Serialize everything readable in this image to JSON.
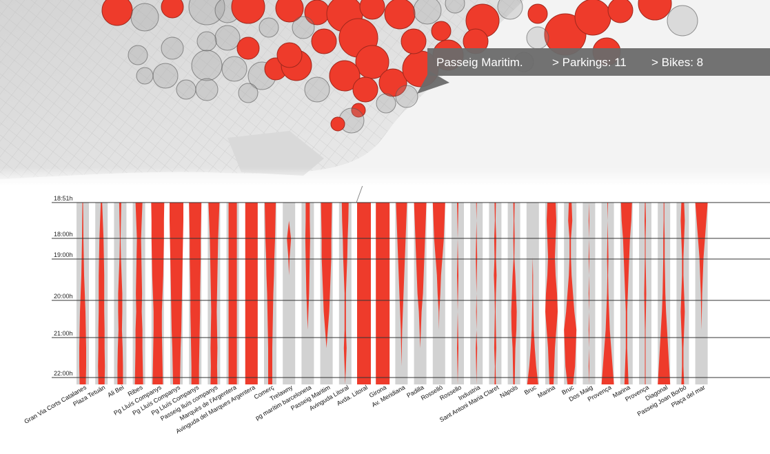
{
  "tooltip": {
    "station": "Passeig Maritim.",
    "parkings": "> Parkings: 11",
    "bikes": "> Bikes: 8"
  },
  "colors": {
    "bike_red": "#ee3b2b",
    "track_gray": "#d2d2d2",
    "tooltip_bg": "#6a6a6a",
    "map_land": "#e4e4e4",
    "map_sea": "#f4f4f4"
  },
  "chart_data": {
    "type": "timeline-columns",
    "title": "",
    "time_ticks": [
      "18:51h",
      "18:00h",
      "19:00h",
      "20:00h",
      "21:00h",
      "22:00h"
    ],
    "stations": [
      {
        "name": "Gran Via Corts Catalanes",
        "profile": [
          0.05,
          0.08,
          0.1,
          0.15,
          0.2,
          0.3,
          0.4,
          0.45,
          0.5,
          0.5,
          0.45
        ]
      },
      {
        "name": "Plaza Tetuán",
        "profile": [
          0.1,
          0.2,
          0.3,
          0.35,
          0.4,
          0.4,
          0.4,
          0.45,
          0.45,
          0.5,
          0.45
        ]
      },
      {
        "name": "Ali Bei",
        "profile": [
          0.15,
          0.1,
          0.05,
          0.1,
          0.2,
          0.3,
          0.3,
          0.25,
          0.35,
          0.4,
          0.4
        ]
      },
      {
        "name": "Ribes",
        "profile": [
          0.5,
          0.4,
          0.3,
          0.35,
          0.4,
          0.45,
          0.4,
          0.5,
          0.5,
          0.55,
          0.6
        ]
      },
      {
        "name": "Pg Lluís Companys",
        "profile": [
          0.95,
          0.9,
          0.9,
          0.85,
          0.8,
          0.7,
          0.6,
          0.6,
          0.65,
          0.7,
          0.75
        ]
      },
      {
        "name": "Pg Lluís Companys",
        "profile": [
          1.0,
          1.0,
          0.95,
          0.9,
          0.85,
          0.8,
          0.75,
          0.7,
          0.6,
          0.55,
          0.5
        ]
      },
      {
        "name": "Pg Lluís Companys",
        "profile": [
          0.9,
          0.85,
          0.8,
          0.8,
          0.75,
          0.7,
          0.7,
          0.65,
          0.6,
          0.55,
          0.55
        ]
      },
      {
        "name": "Passeig lluís companys",
        "profile": [
          0.8,
          0.7,
          0.6,
          0.55,
          0.5,
          0.45,
          0.4,
          0.45,
          0.5,
          0.45,
          0.5
        ]
      },
      {
        "name": "Marquès de l'Argentera",
        "profile": [
          0.6,
          0.6,
          0.6,
          0.6,
          0.6,
          0.6,
          0.6,
          0.6,
          0.6,
          0.6,
          0.6
        ]
      },
      {
        "name": "Avinguda del Marques Argentera",
        "profile": [
          0.9,
          0.9,
          0.9,
          0.9,
          0.9,
          0.9,
          0.9,
          0.9,
          0.9,
          0.9,
          0.9
        ]
      },
      {
        "name": "Comerç",
        "profile": [
          0.8,
          0.75,
          0.7,
          0.6,
          0.55,
          0.45,
          0.4,
          0.35,
          0.3,
          0.3,
          0.3
        ]
      },
      {
        "name": "Trelawny",
        "profile": [
          0.0,
          0.0,
          0.3,
          0.1,
          0.0,
          0.0,
          0.0,
          0.0,
          0.0,
          0.0,
          0.0
        ]
      },
      {
        "name": "pg marítim barceloneta",
        "profile": [
          0.3,
          0.3,
          0.35,
          0.3,
          0.25,
          0.2,
          0.1,
          0.0,
          0.0,
          0.0,
          0.0
        ]
      },
      {
        "name": "Passeig Maritim",
        "profile": [
          0.8,
          0.75,
          0.7,
          0.7,
          0.6,
          0.5,
          0.4,
          0.2,
          0.0,
          0.0,
          0.0
        ]
      },
      {
        "name": "Avinguda Litoral",
        "profile": [
          0.5,
          0.45,
          0.35,
          0.3,
          0.2,
          0.1,
          0.1,
          0.1,
          0.2,
          0.1,
          0.0
        ]
      },
      {
        "name": "Avda. Litoral",
        "profile": [
          1.0,
          1.0,
          1.0,
          1.0,
          1.0,
          1.0,
          1.0,
          1.0,
          1.0,
          1.0,
          1.0
        ]
      },
      {
        "name": "Girona",
        "profile": [
          1.0,
          1.0,
          1.0,
          1.0,
          1.0,
          1.0,
          1.0,
          1.0,
          1.0,
          1.0,
          1.0
        ]
      },
      {
        "name": "Av. Meridiana",
        "profile": [
          0.8,
          0.7,
          0.6,
          0.5,
          0.4,
          0.3,
          0.2,
          0.1,
          0.05,
          0.0,
          0.0
        ]
      },
      {
        "name": "Padilla",
        "profile": [
          0.9,
          0.8,
          0.7,
          0.6,
          0.5,
          0.4,
          0.2,
          0.1,
          0.0,
          0.0,
          0.0
        ]
      },
      {
        "name": "Rosselló",
        "profile": [
          0.9,
          0.8,
          0.7,
          0.5,
          0.3,
          0.2,
          0.05,
          0.0,
          0.0,
          0.0,
          0.0
        ]
      },
      {
        "name": "Rossello",
        "profile": [
          0.1,
          0.05,
          0.0,
          0.05,
          0.1,
          0.05,
          0.0,
          0.05,
          0.1,
          0.05,
          0.0
        ]
      },
      {
        "name": "Industria",
        "profile": [
          0.05,
          0.0,
          0.05,
          0.1,
          0.05,
          0.0,
          0.05,
          0.0,
          0.1,
          0.05,
          0.0
        ]
      },
      {
        "name": "Sant Antoni Maria Claret",
        "profile": [
          0.1,
          0.05,
          0.15,
          0.1,
          0.2,
          0.1,
          0.05,
          0.1,
          0.15,
          0.05,
          0.1
        ]
      },
      {
        "name": "Nàpols",
        "profile": [
          0.1,
          0.05,
          0.1,
          0.05,
          0.2,
          0.3,
          0.4,
          0.35,
          0.2,
          0.15,
          0.1
        ]
      },
      {
        "name": "Bruc",
        "profile": [
          0.0,
          0.0,
          0.0,
          0.0,
          0.05,
          0.05,
          0.1,
          0.15,
          0.3,
          0.5,
          0.8
        ]
      },
      {
        "name": "Marina",
        "profile": [
          0.6,
          0.7,
          0.6,
          0.5,
          0.6,
          0.8,
          0.9,
          0.7,
          0.5,
          0.4,
          0.3
        ]
      },
      {
        "name": "Bruc",
        "profile": [
          0.2,
          0.3,
          0.1,
          0.1,
          0.2,
          0.4,
          0.6,
          0.9,
          0.8,
          0.7,
          0.4
        ]
      },
      {
        "name": "Dos Maig",
        "profile": [
          0.0,
          0.05,
          0.0,
          0.05,
          0.0,
          0.05,
          0.0,
          0.05,
          0.0,
          0.05,
          0.0
        ]
      },
      {
        "name": "Provença",
        "profile": [
          0.05,
          0.0,
          0.05,
          0.1,
          0.05,
          0.1,
          0.2,
          0.3,
          0.5,
          0.7,
          0.9
        ]
      },
      {
        "name": "Marina",
        "profile": [
          0.8,
          0.7,
          0.5,
          0.4,
          0.3,
          0.2,
          0.1,
          0.1,
          0.1,
          0.2,
          0.3
        ]
      },
      {
        "name": "Provença",
        "profile": [
          0.05,
          0.1,
          0.05,
          0.05,
          0.1,
          0.15,
          0.1,
          0.05,
          0.05,
          0.05,
          0.05
        ]
      },
      {
        "name": "Diagonal",
        "profile": [
          0.05,
          0.05,
          0.1,
          0.1,
          0.15,
          0.2,
          0.3,
          0.45,
          0.6,
          0.75,
          0.9
        ]
      },
      {
        "name": "Passeig Joan Borbó",
        "profile": [
          0.2,
          0.3,
          0.2,
          0.1,
          0.1,
          0.2,
          0.3,
          0.2,
          0.1,
          0.1,
          0.2
        ]
      },
      {
        "name": "Plaça del mar",
        "profile": [
          0.9,
          0.7,
          0.5,
          0.3,
          0.2,
          0.1,
          0.05,
          0.0,
          0.0,
          0.0,
          0.0
        ]
      }
    ]
  }
}
